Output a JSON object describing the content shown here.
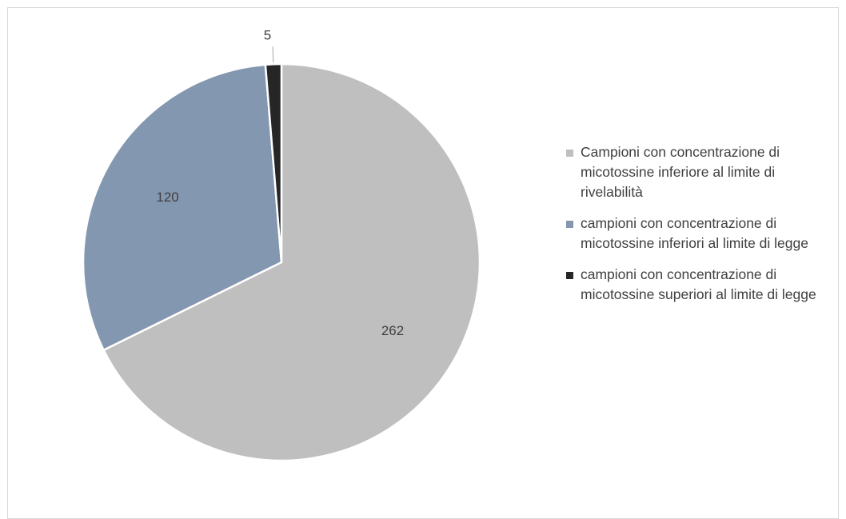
{
  "chart_data": {
    "type": "pie",
    "title": "",
    "categories": [
      "Campioni con concentrazione di micotossine inferiore al limite di rivelabilità",
      "campioni con concentrazione di micotossine inferiori al limite di legge",
      "campioni con concentrazione di micotossine superiori al limite di legge"
    ],
    "values": [
      262,
      120,
      5
    ],
    "data_labels": [
      "262",
      "120",
      "5"
    ],
    "colors": [
      "#bfbfbf",
      "#8497b0",
      "#262626"
    ],
    "slice_border_color": "#ffffff",
    "label_color": "#404040",
    "legend": {
      "position": "right",
      "entries": [
        {
          "label": "Campioni con concentrazione di micotossine inferiore al limite di rivelabilità",
          "color": "#bfbfbf"
        },
        {
          "label": "campioni con concentrazione di micotossine inferiori al limite di legge",
          "color": "#8497b0"
        },
        {
          "label": "campioni con concentrazione di micotossine superiori al limite di legge",
          "color": "#262626"
        }
      ]
    }
  }
}
